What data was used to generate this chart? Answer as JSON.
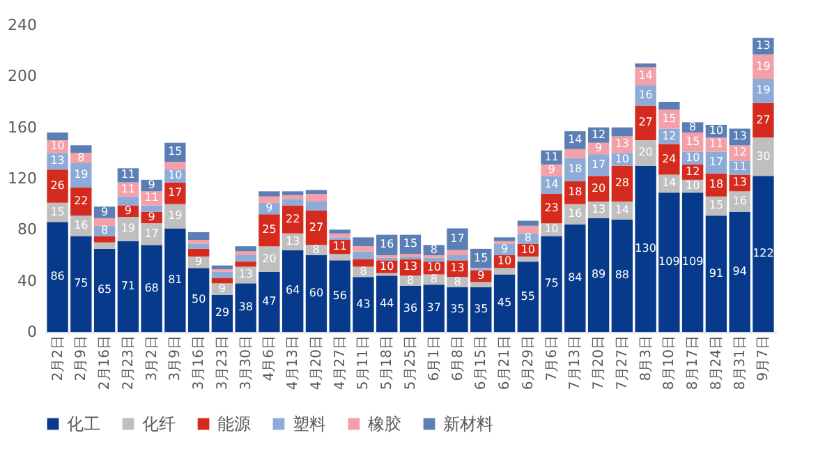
{
  "chart_data": {
    "type": "bar",
    "stacked": true,
    "legend": "bottom",
    "grid": false,
    "categories": [
      "2月2日",
      "2月9日",
      "2月16日",
      "2月23日",
      "3月2日",
      "3月9日",
      "3月16日",
      "3月23日",
      "3月30日",
      "4月6日",
      "4月13日",
      "4月20日",
      "4月27日",
      "5月11日",
      "5月18日",
      "5月25日",
      "6月1日",
      "6月8日",
      "6月15日",
      "6月21日",
      "6月29日",
      "7月6日",
      "7月13日",
      "7月20日",
      "7月27日",
      "8月3日",
      "8月10日",
      "8月17日",
      "8月24日",
      "8月31日",
      "9月7日"
    ],
    "ylim": [
      0,
      240
    ],
    "yticks": [
      0,
      40,
      80,
      120,
      160,
      200,
      240
    ],
    "series": [
      {
        "name": "化工",
        "color": "#083a8c",
        "values": [
          86,
          75,
          65,
          71,
          68,
          81,
          50,
          29,
          38,
          47,
          64,
          60,
          56,
          43,
          44,
          36,
          37,
          35,
          35,
          45,
          55,
          75,
          84,
          89,
          88,
          130,
          109,
          109,
          91,
          94,
          122
        ],
        "value_labels": [
          "86",
          "75",
          "65",
          "71",
          "68",
          "81",
          "50",
          "29",
          "38",
          "47",
          "64",
          "60",
          "56",
          "43",
          "44",
          "36",
          "37",
          "35",
          "35",
          "45",
          "55",
          "75",
          "84",
          "89",
          "88",
          "130",
          "109",
          "109",
          "91",
          "94",
          "122"
        ]
      },
      {
        "name": "化纤",
        "color": "#bfbfbf",
        "values": [
          15,
          16,
          5,
          19,
          17,
          19,
          9,
          9,
          13,
          20,
          13,
          8,
          5,
          8,
          2,
          8,
          8,
          8,
          4,
          5,
          4,
          10,
          16,
          13,
          14,
          20,
          14,
          10,
          15,
          16,
          30
        ],
        "value_labels": [
          "15",
          "16",
          null,
          "19",
          "17",
          "19",
          "9",
          "9",
          "13",
          "20",
          "13",
          "8",
          null,
          "8",
          null,
          "8",
          "8",
          "8",
          null,
          null,
          null,
          "10",
          "16",
          "13",
          "14",
          "20",
          "14",
          "10",
          "15",
          "16",
          "30"
        ]
      },
      {
        "name": "能源",
        "color": "#d52b1e",
        "values": [
          26,
          22,
          5,
          9,
          9,
          17,
          6,
          4,
          4,
          25,
          22,
          27,
          11,
          6,
          10,
          13,
          10,
          13,
          9,
          10,
          10,
          23,
          18,
          20,
          28,
          27,
          24,
          12,
          18,
          13,
          27
        ],
        "value_labels": [
          "26",
          "22",
          null,
          "9",
          "9",
          "17",
          null,
          null,
          null,
          "25",
          "22",
          "27",
          "11",
          null,
          "10",
          "13",
          "10",
          "13",
          "9",
          "10",
          "10",
          "23",
          "18",
          "20",
          "28",
          "27",
          "24",
          "12",
          "18",
          "13",
          "27"
        ]
      },
      {
        "name": "塑料",
        "color": "#8eaad6",
        "values": [
          13,
          19,
          8,
          7,
          5,
          10,
          4,
          5,
          5,
          9,
          5,
          7,
          2,
          6,
          2,
          2,
          3,
          4,
          1,
          9,
          8,
          14,
          18,
          17,
          10,
          16,
          12,
          10,
          17,
          11,
          19
        ],
        "value_labels": [
          "13",
          "19",
          "8",
          null,
          null,
          "10",
          null,
          null,
          null,
          "9",
          null,
          null,
          null,
          null,
          null,
          null,
          null,
          null,
          null,
          "9",
          "8",
          "14",
          "18",
          "17",
          "10",
          "16",
          "12",
          "10",
          "17",
          "11",
          "19"
        ]
      },
      {
        "name": "橡胶",
        "color": "#f4a0a8",
        "values": [
          10,
          8,
          6,
          11,
          11,
          6,
          3,
          2,
          3,
          5,
          3,
          6,
          3,
          4,
          2,
          2,
          2,
          4,
          1,
          2,
          6,
          9,
          7,
          9,
          13,
          14,
          15,
          15,
          11,
          12,
          19
        ],
        "value_labels": [
          "10",
          "8",
          null,
          "11",
          "11",
          null,
          null,
          null,
          null,
          null,
          null,
          null,
          null,
          null,
          null,
          null,
          null,
          null,
          null,
          null,
          null,
          "9",
          null,
          "9",
          "13",
          "14",
          "15",
          "15",
          "11",
          "12",
          "19"
        ]
      },
      {
        "name": "新材料",
        "color": "#5b7fb5",
        "values": [
          6,
          6,
          9,
          11,
          9,
          15,
          6,
          3,
          4,
          4,
          3,
          3,
          3,
          7,
          16,
          15,
          8,
          17,
          15,
          3,
          4,
          11,
          14,
          12,
          7,
          3,
          6,
          8,
          10,
          13,
          13
        ],
        "value_labels": [
          null,
          null,
          "9",
          "11",
          "9",
          "15",
          null,
          null,
          null,
          null,
          null,
          null,
          null,
          null,
          "16",
          "15",
          "8",
          "17",
          "15",
          null,
          null,
          "11",
          "14",
          "12",
          null,
          null,
          null,
          "8",
          "10",
          "13",
          "13"
        ]
      }
    ]
  }
}
